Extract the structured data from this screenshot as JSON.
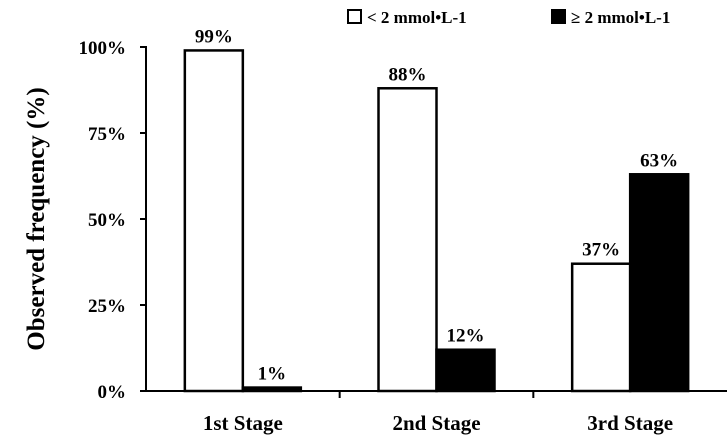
{
  "chart_data": {
    "type": "bar",
    "title": "",
    "xlabel": "",
    "ylabel": "Observed frequency (%)",
    "ylim": [
      0,
      100
    ],
    "yticks": [
      "0%",
      "25%",
      "50%",
      "75%",
      "100%"
    ],
    "categories": [
      "1st Stage",
      "2nd Stage",
      "3rd Stage"
    ],
    "series": [
      {
        "name": "< 2 mmol•L-1",
        "values": [
          99,
          88,
          37
        ],
        "labels": [
          "99%",
          "88%",
          "37%"
        ],
        "color": "#ffffff"
      },
      {
        "name": "≥ 2 mmol•L-1",
        "values": [
          1,
          12,
          63
        ],
        "labels": [
          "1%",
          "12%",
          "63%"
        ],
        "color": "#000000"
      }
    ],
    "legend": "top-right",
    "grid": false
  }
}
